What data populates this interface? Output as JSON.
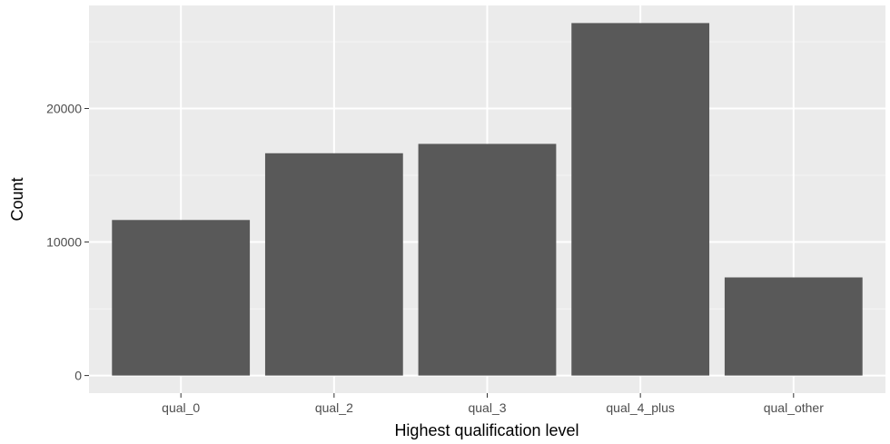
{
  "chart_data": {
    "type": "bar",
    "title": "",
    "xlabel": "Highest qualification level",
    "ylabel": "Count",
    "categories": [
      "qual_0",
      "qual_2",
      "qual_3",
      "qual_4_plus",
      "qual_other"
    ],
    "values": [
      11650,
      16650,
      17350,
      26400,
      7350
    ],
    "ylim": [
      -1320,
      27720
    ],
    "yticks": [
      0,
      10000,
      20000
    ],
    "ytick_labels": [
      "0",
      "10000",
      "20000"
    ],
    "grid": true,
    "legend": "none",
    "colors": {
      "bar": "#595959",
      "panel": "#ebebeb",
      "grid_major": "#ffffff",
      "grid_minor": "#f5f5f5",
      "tick": "#333333"
    }
  }
}
